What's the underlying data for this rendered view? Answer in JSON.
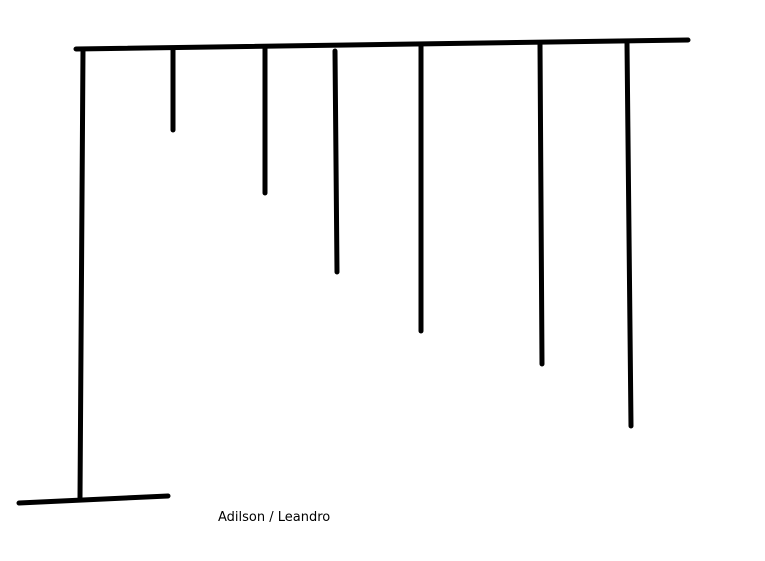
{
  "caption": "Adilson / Leandro",
  "stroke_color": "#000000",
  "drawing": {
    "type": "freehand line drawing",
    "top_beam": "horizontal line",
    "post": "vertical line",
    "base": "horizontal line",
    "hanging_lines_count": 6
  }
}
